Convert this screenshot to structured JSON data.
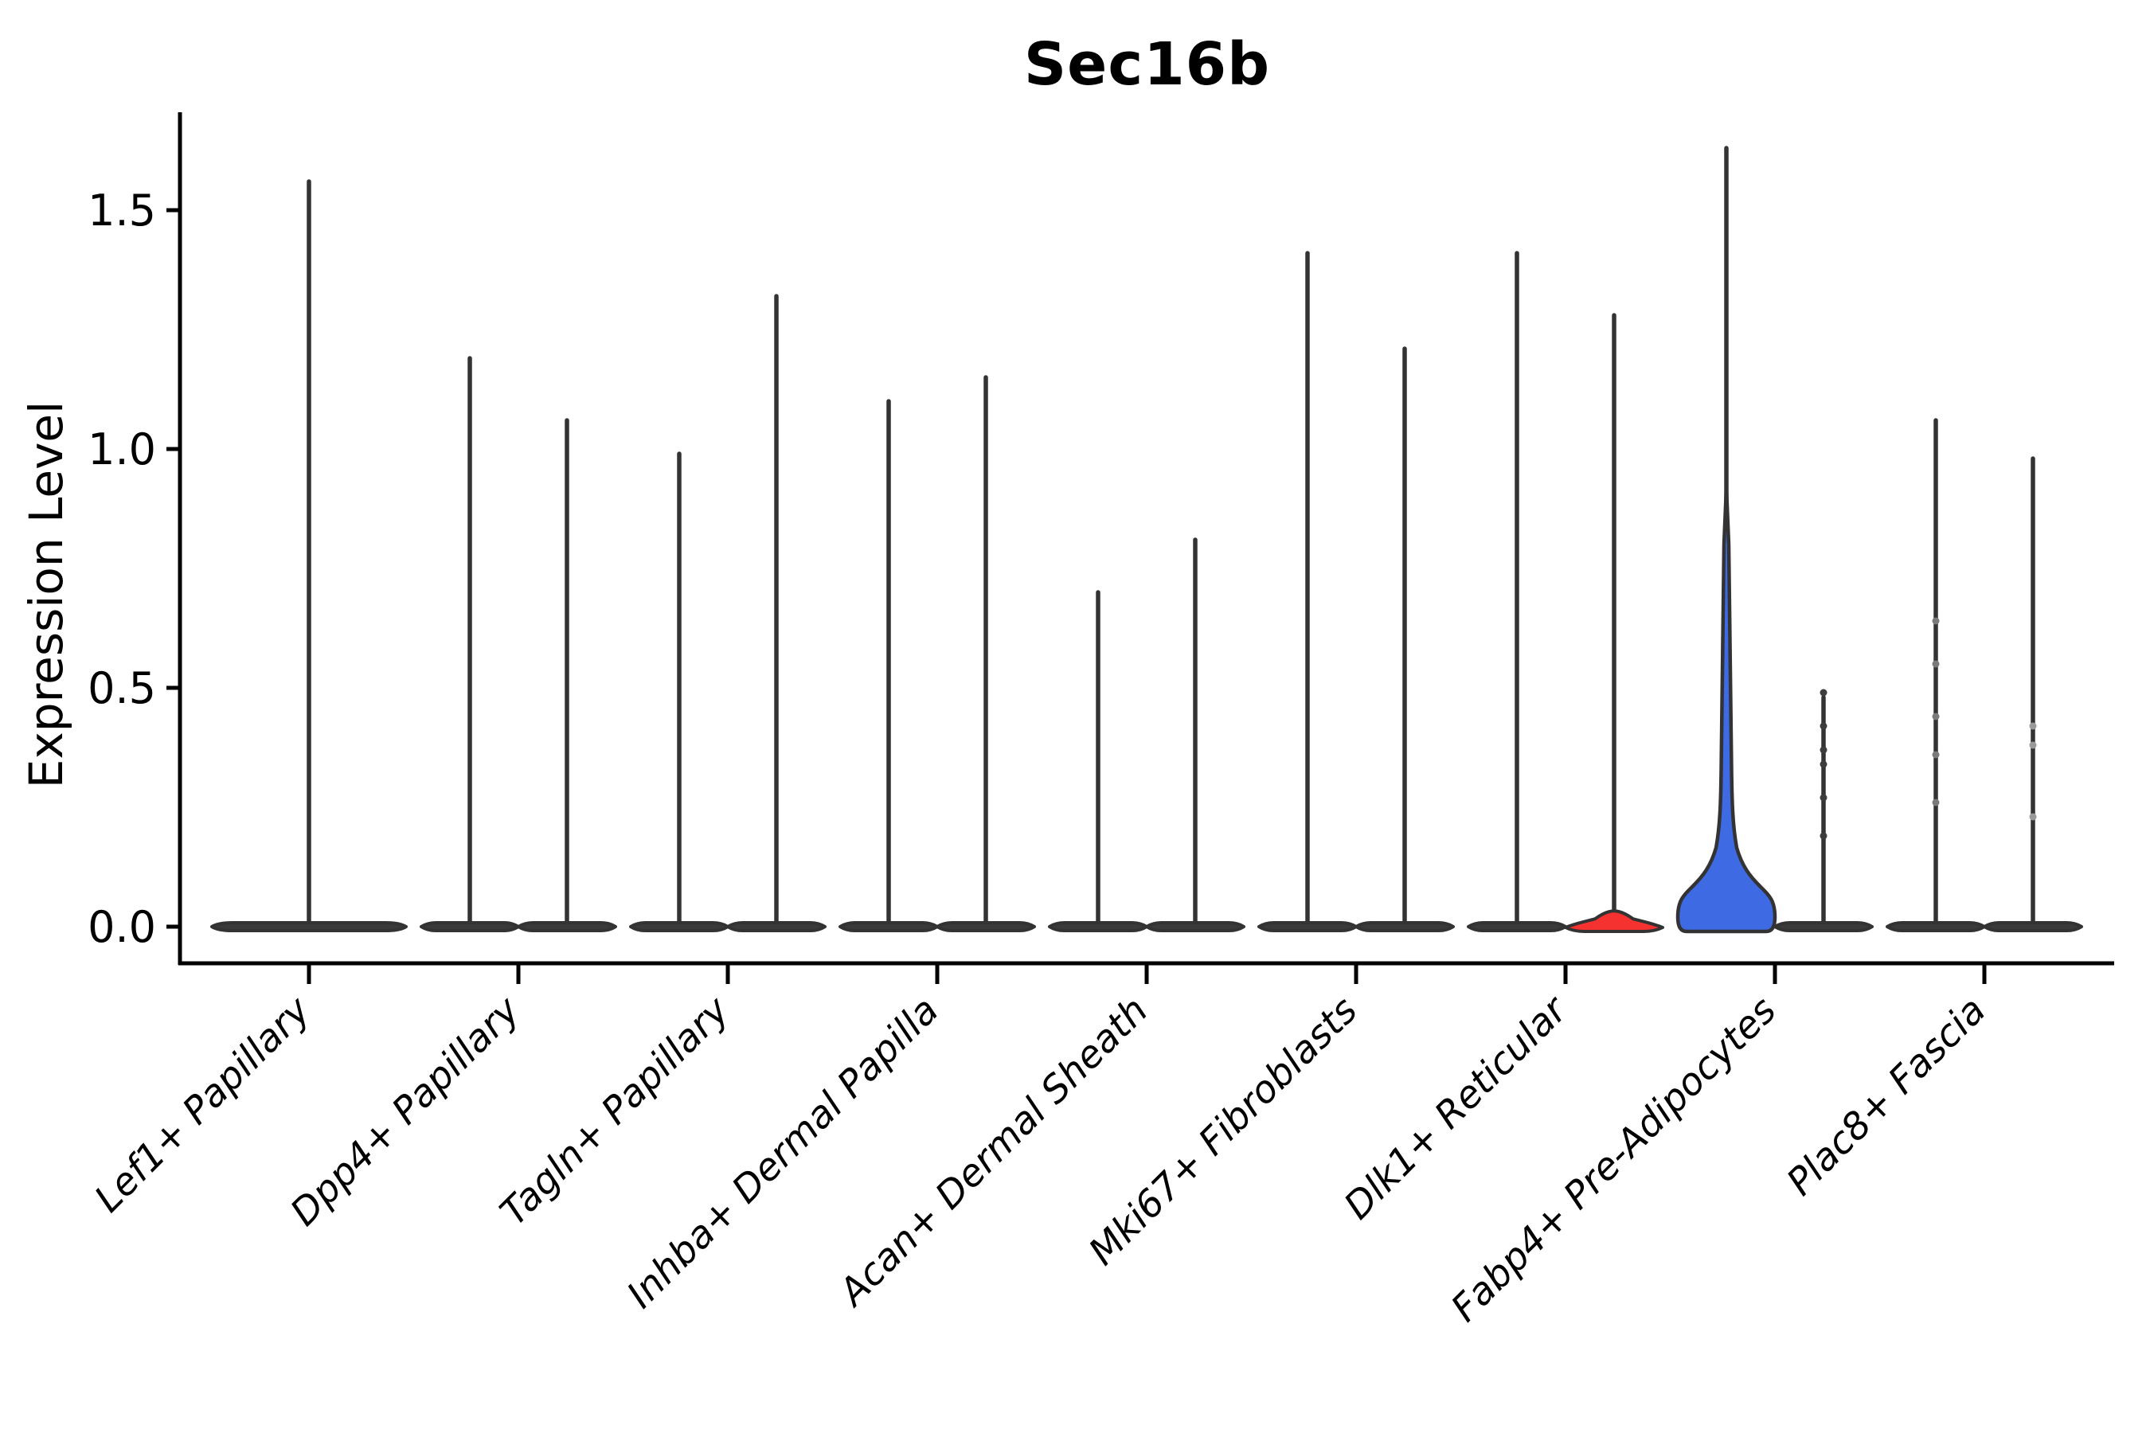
{
  "chart_data": {
    "type": "violin",
    "title": "Sec16b",
    "ylabel": "Expression Level",
    "xlabel": "",
    "ylim": [
      -0.08,
      1.71
    ],
    "grid": false,
    "legend": "none",
    "yticks": [
      {
        "v": 0.0,
        "label": "0.0"
      },
      {
        "v": 0.5,
        "label": "0.5"
      },
      {
        "v": 1.0,
        "label": "1.0"
      },
      {
        "v": 1.5,
        "label": "1.5"
      }
    ],
    "categories": [
      "Lef1+ Papillary",
      "Dpp4+ Papillary",
      "Tagln+ Papillary",
      "Inhba+ Dermal Papilla",
      "Acan+ Dermal Sheath",
      "Mki67+ Fibroblasts",
      "Dlk1+ Reticular",
      "Fabp4+ Pre-Adipocytes",
      "Plac8+ Fascia"
    ],
    "colors": {
      "default": "#3a3a3a",
      "outline": "#333333",
      "red": "#f5322f",
      "blue": "#3e6be3",
      "axis": "#000000"
    },
    "violins": [
      {
        "col": 0,
        "slot": "center",
        "category": "Lef1+ Papillary",
        "max": 1.56,
        "shape": "flat",
        "fill": "default",
        "wide": true,
        "dots": []
      },
      {
        "col": 1,
        "slot": "left",
        "category": "Dpp4+ Papillary",
        "max": 1.19,
        "shape": "flat",
        "fill": "default",
        "dots": []
      },
      {
        "col": 1,
        "slot": "right",
        "category": "Dpp4+ Papillary",
        "max": 1.06,
        "shape": "flat",
        "fill": "default",
        "dots": []
      },
      {
        "col": 2,
        "slot": "left",
        "category": "Tagln+ Papillary",
        "max": 0.99,
        "shape": "flat",
        "fill": "default",
        "dots": []
      },
      {
        "col": 2,
        "slot": "right",
        "category": "Tagln+ Papillary",
        "max": 1.32,
        "shape": "flat",
        "fill": "default",
        "dots": []
      },
      {
        "col": 3,
        "slot": "left",
        "category": "Inhba+ Dermal Papilla",
        "max": 1.1,
        "shape": "flat",
        "fill": "default",
        "dots": []
      },
      {
        "col": 3,
        "slot": "right",
        "category": "Inhba+ Dermal Papilla",
        "max": 1.15,
        "shape": "flat",
        "fill": "default",
        "dots": []
      },
      {
        "col": 4,
        "slot": "left",
        "category": "Acan+ Dermal Sheath",
        "max": 0.7,
        "shape": "flat",
        "fill": "default",
        "dots": []
      },
      {
        "col": 4,
        "slot": "right",
        "category": "Acan+ Dermal Sheath",
        "max": 0.81,
        "shape": "flat",
        "fill": "default",
        "dots": []
      },
      {
        "col": 5,
        "slot": "left",
        "category": "Mki67+ Fibroblasts",
        "max": 1.41,
        "shape": "flat",
        "fill": "default",
        "dots": []
      },
      {
        "col": 5,
        "slot": "right",
        "category": "Mki67+ Fibroblasts",
        "max": 1.21,
        "shape": "flat",
        "fill": "default",
        "dots": []
      },
      {
        "col": 6,
        "slot": "left",
        "category": "Dlk1+ Reticular",
        "max": 1.41,
        "shape": "flat",
        "fill": "default",
        "dots": []
      },
      {
        "col": 6,
        "slot": "right",
        "category": "Dlk1+ Reticular",
        "max": 1.28,
        "shape": "bump",
        "fill": "red",
        "dots": []
      },
      {
        "col": 7,
        "slot": "left",
        "category": "Fabp4+ Pre-Adipocytes",
        "max": 1.63,
        "shape": "bell",
        "fill": "blue",
        "dots": []
      },
      {
        "col": 7,
        "slot": "right",
        "category": "Fabp4+ Pre-Adipocytes",
        "max": 0.48,
        "shape": "flat",
        "fill": "default",
        "dots": [
          0.49,
          0.42,
          0.37,
          0.34,
          0.27,
          0.19
        ],
        "dot_color": "#3d3d3d"
      },
      {
        "col": 8,
        "slot": "left",
        "category": "Plac8+ Fascia",
        "max": 1.06,
        "shape": "flat",
        "fill": "default",
        "dots": [
          0.64,
          0.55,
          0.44,
          0.36,
          0.26
        ],
        "dot_color": "#7a7a7a"
      },
      {
        "col": 8,
        "slot": "right",
        "category": "Plac8+ Fascia",
        "max": 0.98,
        "shape": "flat",
        "fill": "default",
        "dots": [
          0.42,
          0.38,
          0.23
        ],
        "dot_color": "#9a9a9a"
      }
    ]
  }
}
